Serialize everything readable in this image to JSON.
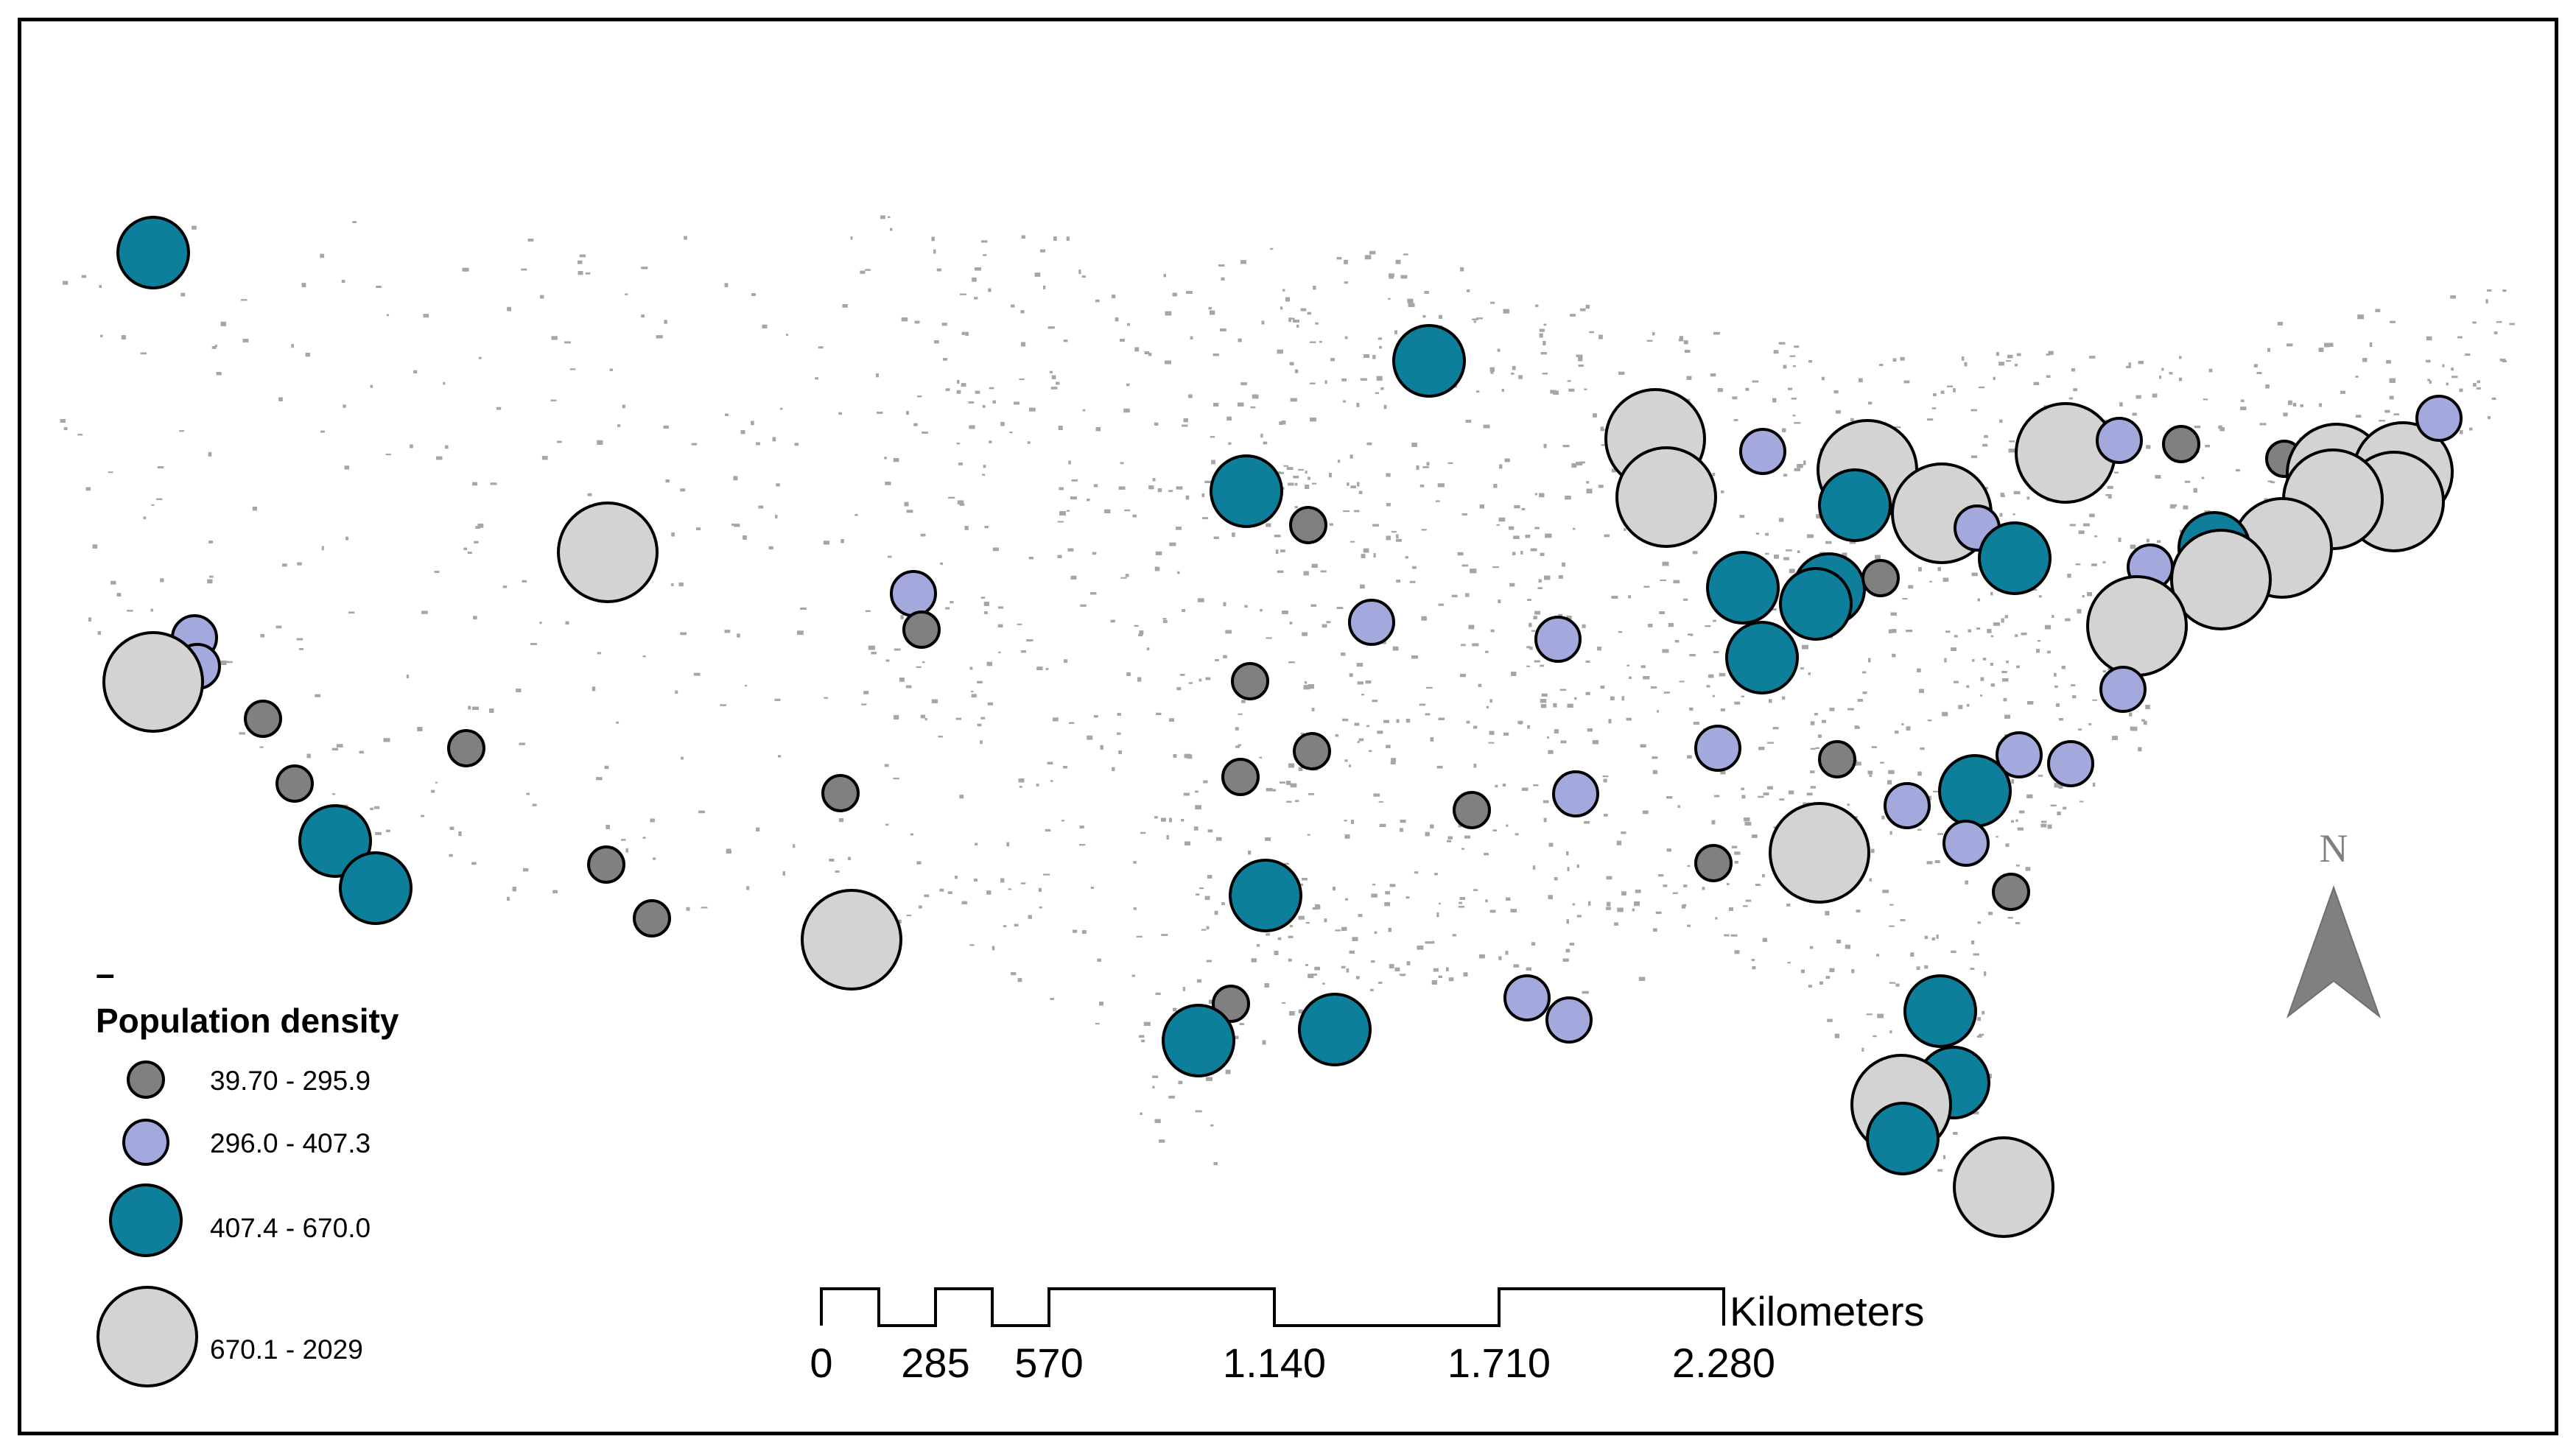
{
  "legend": {
    "title": "Population density",
    "dash": "–",
    "classes": [
      {
        "label": "39.70 - 295.9",
        "color": "#808080"
      },
      {
        "label": "296.0 - 407.3",
        "color": "#a3a9dc"
      },
      {
        "label": "407.4 - 670.0",
        "color": "#0e7f9b"
      },
      {
        "label": "670.1 - 2029",
        "color": "#d3d3d3"
      }
    ]
  },
  "scale_bar": {
    "unit": "Kilometers",
    "ticks": [
      "0",
      "285",
      "570",
      "1.140",
      "1.710",
      "2.280"
    ]
  },
  "north_arrow": {
    "label": "N",
    "color": "#808080"
  },
  "colors": {
    "outline": "#000000",
    "background_dots": "#a6a6a6"
  }
}
